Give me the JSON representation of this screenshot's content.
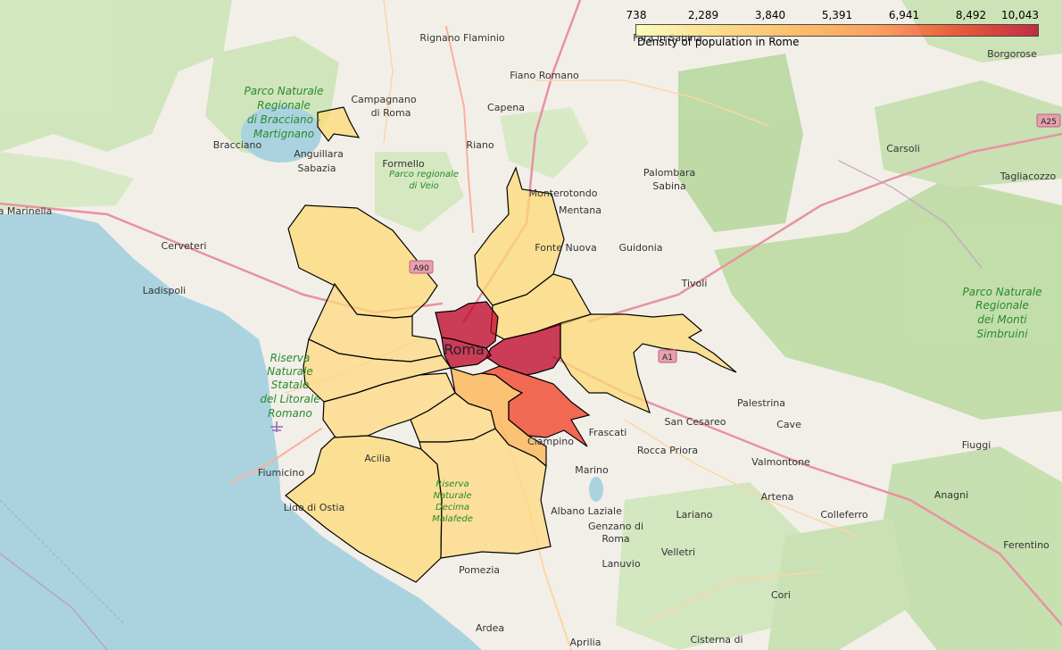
{
  "map": {
    "legend": {
      "caption": "Density of population in Rome",
      "ticks": [
        "738",
        "2,289",
        "3,840",
        "5,391",
        "6,941",
        "8,492",
        "10,043"
      ],
      "min": 738,
      "max": 10043,
      "colors": [
        "#ffffb2",
        "#fed976",
        "#feb24c",
        "#fd8d3c",
        "#f03b20",
        "#bd0026"
      ]
    },
    "center_label": "Roma",
    "place_labels": {
      "rignano": "Rignano Flaminio",
      "fara": "Fara in Sabina",
      "borgorose": "Borgorose",
      "fiano": "Fiano Romano",
      "campagnano": "Campagnano",
      "campagnano2": "di Roma",
      "capena": "Capena",
      "bracciano": "Bracciano",
      "anguillara": "Anguillara",
      "sabazia": "Sabazia",
      "formello": "Formello",
      "riano": "Riano",
      "carsoli": "Carsoli",
      "tagliacozzo": "Tagliacozzo",
      "palombara": "Palombara",
      "sabina": "Sabina",
      "monterotondo": "Monterotondo",
      "mentana": "Mentana",
      "marinella": "a Marinella",
      "cerveteri": "Cerveteri",
      "fontenuova": "Fonte Nuova",
      "guidonia": "Guidonia",
      "tivoli": "Tivoli",
      "ladispoli": "Ladispoli",
      "palestrina": "Palestrina",
      "cave": "Cave",
      "sancesareo": "San Cesareo",
      "frascati": "Frascati",
      "ciampino": "Ciampino",
      "roccapriora": "Rocca Priora",
      "valmontone": "Valmontone",
      "fiuggi": "Fiuggi",
      "fiumicino": "Fiumicino",
      "acilia": "Acilia",
      "marino": "Marino",
      "artena": "Artena",
      "colleferro": "Colleferro",
      "anagni": "Anagni",
      "lido": "Lido di Ostia",
      "albano": "Albano Laziale",
      "genzano": "Genzano di",
      "genzano2": "Roma",
      "lariano": "Lariano",
      "velletri": "Velletri",
      "lanuvio": "Lanuvio",
      "ferentino": "Ferentino",
      "pomezia": "Pomezia",
      "cori": "Cori",
      "ardea": "Ardea",
      "aprilia": "Aprilia",
      "cisterna": "Cisterna di"
    },
    "park_labels": {
      "bracciano_park": [
        "Parco Naturale",
        "Regionale",
        "di Bracciano -",
        "Martignano"
      ],
      "veio": [
        "Parco regionale",
        "di Veio"
      ],
      "litorale": [
        "Riserva",
        "Naturale",
        "Statale",
        "del Litorale",
        "Romano"
      ],
      "decima": [
        "Riserva",
        "Naturale",
        "Decima",
        "Malafede"
      ],
      "simbruini": [
        "Parco Naturale",
        "Regionale",
        "dei Monti",
        "Simbruini"
      ]
    },
    "road_shields": {
      "a90": "A90",
      "a1": "A1",
      "a25": "A25"
    }
  }
}
